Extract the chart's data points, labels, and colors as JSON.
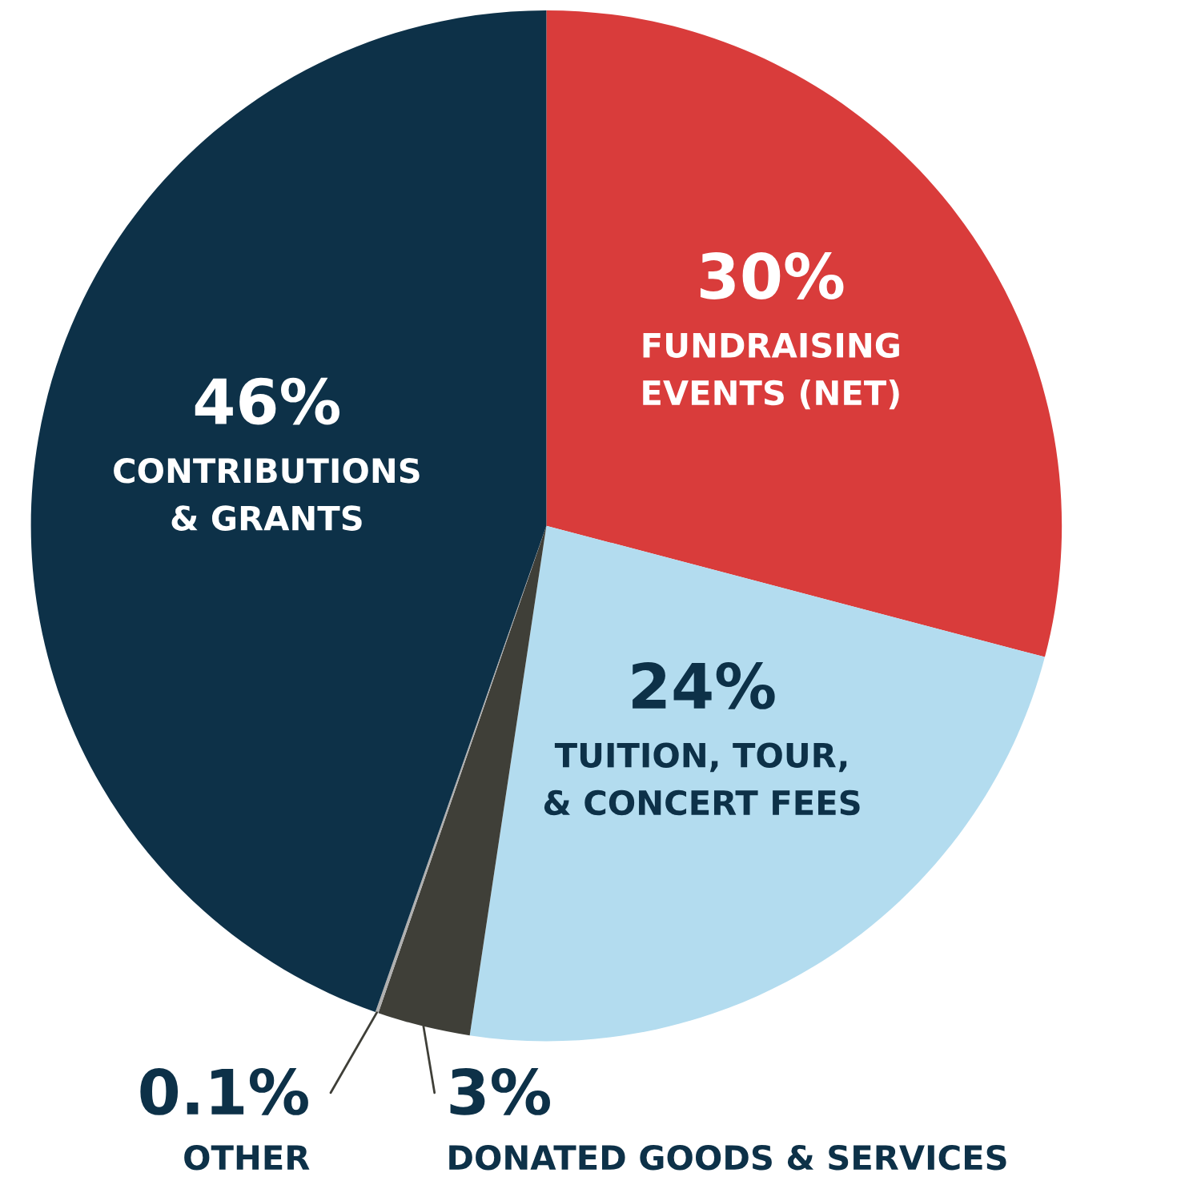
{
  "chart_data": {
    "type": "pie",
    "categories": [
      "FUNDRAISING\nEVENTS (NET)",
      "TUITION, TOUR,\n& CONCERT FEES",
      "DONATED GOODS & SERVICES",
      "OTHER",
      "CONTRIBUTIONS\n& GRANTS"
    ],
    "values": [
      30,
      24,
      3,
      0.1,
      46
    ],
    "value_labels": [
      "30%",
      "24%",
      "3%",
      "0.1%",
      "46%"
    ],
    "colors": [
      "#d93c3b",
      "#b3dcef",
      "#3f3f38",
      "#b0b0b0",
      "#0d3148"
    ]
  }
}
